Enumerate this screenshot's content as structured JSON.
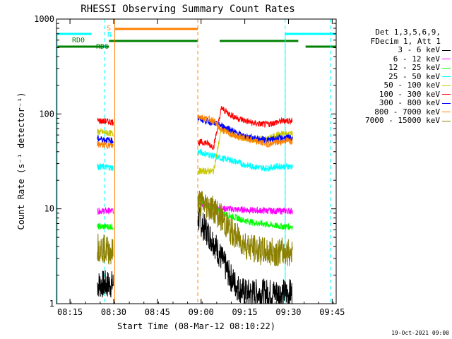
{
  "chart_data": {
    "type": "line",
    "title": "RHESSI Observing Summary Count Rates",
    "xlabel": "Start Time (08-Mar-12 08:10:22)",
    "ylabel": "Count Rate (s⁻¹ detector⁻¹)",
    "yscale": "log",
    "ylim": [
      1,
      1000
    ],
    "xlim_minutes": [
      0,
      96
    ],
    "ytick_labels": [
      "1",
      "10",
      "100",
      "1000"
    ],
    "xtick_labels": [
      "08:15",
      "08:30",
      "08:45",
      "09:00",
      "09:15",
      "09:30",
      "09:45"
    ],
    "xtick_minutes": [
      4.63,
      19.63,
      34.63,
      49.63,
      64.63,
      79.63,
      94.63
    ],
    "segments_minutes": [
      [
        14,
        19.5
      ],
      [
        48.5,
        81
      ]
    ],
    "series": [
      {
        "name": "3 - 6 keV",
        "color": "#000000",
        "segment1": [
          1.6,
          1.6
        ],
        "segment2": [
          8,
          6,
          4.5,
          3,
          2,
          1.5,
          1.3,
          1.3,
          1.3,
          1.3,
          1.3,
          1.3,
          1.3
        ]
      },
      {
        "name": "6 - 12 keV",
        "color": "#ff00ff",
        "segment1": [
          9.5,
          9.5
        ],
        "segment2": [
          12,
          11,
          10.5,
          10,
          10,
          9.8,
          9.8,
          9.6,
          9.6,
          9.5,
          9.5,
          9.5,
          9.5
        ]
      },
      {
        "name": "12 - 25 keV",
        "color": "#00ff00",
        "segment1": [
          6.5,
          6.5
        ],
        "segment2": [
          12,
          11,
          10,
          9,
          8.5,
          8,
          7.5,
          7.2,
          7,
          6.8,
          6.6,
          6.5,
          6.5
        ]
      },
      {
        "name": "25 - 50 keV",
        "color": "#00ffff",
        "segment1": [
          28,
          27
        ],
        "segment2": [
          40,
          38,
          36,
          34,
          33,
          31,
          29,
          28,
          27,
          27,
          28,
          28,
          28
        ]
      },
      {
        "name": "50 - 100 keV",
        "color": "#c8c800",
        "segment1": [
          65,
          62
        ],
        "segment2": [
          25,
          25,
          25,
          70,
          63,
          58,
          55,
          54,
          54,
          55,
          60,
          62,
          62
        ]
      },
      {
        "name": "100 - 300 keV",
        "color": "#ff0000",
        "segment1": [
          85,
          82
        ],
        "segment2": [
          50,
          50,
          45,
          115,
          100,
          90,
          85,
          80,
          78,
          78,
          82,
          85,
          85
        ]
      },
      {
        "name": "300 - 800 keV",
        "color": "#0000ff",
        "segment1": [
          55,
          52
        ],
        "segment2": [
          90,
          85,
          80,
          75,
          70,
          62,
          58,
          56,
          54,
          53,
          55,
          56,
          56
        ]
      },
      {
        "name": "800 - 7000 keV",
        "color": "#ff8000",
        "segment1": [
          48,
          46
        ],
        "segment2": [
          95,
          90,
          85,
          68,
          62,
          58,
          55,
          52,
          50,
          48,
          50,
          52,
          52
        ]
      },
      {
        "name": "7000 - 15000 keV",
        "color": "#8b8000",
        "segment1": [
          4,
          3.5
        ],
        "segment2": [
          12,
          11,
          10,
          8,
          6,
          5,
          4.2,
          3.8,
          3.6,
          3.5,
          3.5,
          3.5,
          3.5
        ]
      }
    ],
    "legend": {
      "header": [
        "Det 1,3,5,6,9,",
        "FDecim 1, Att 1"
      ],
      "position": "right"
    },
    "flags": {
      "rd0_label": "RD0",
      "rd6_label": "RD6",
      "s_label": "S",
      "n_label": "N",
      "rd0_color": "#00ffff",
      "rd6_color": "#008000",
      "saa_color": "#ff8000",
      "rd0_intervals_minutes": [
        [
          0,
          12
        ],
        [
          78.5,
          96
        ]
      ],
      "rd6_intervals_minutes": [
        [
          0,
          18
        ],
        [
          18,
          48.5
        ],
        [
          56,
          83
        ],
        [
          85.5,
          96
        ]
      ],
      "saa_interval_minutes": [
        20,
        48.5
      ],
      "night_markers_minutes": [
        16.5,
        78.5,
        94
      ],
      "saa_markers_minutes": [
        20,
        48.5
      ]
    },
    "stamp": "19-Oct-2021 09:00"
  }
}
